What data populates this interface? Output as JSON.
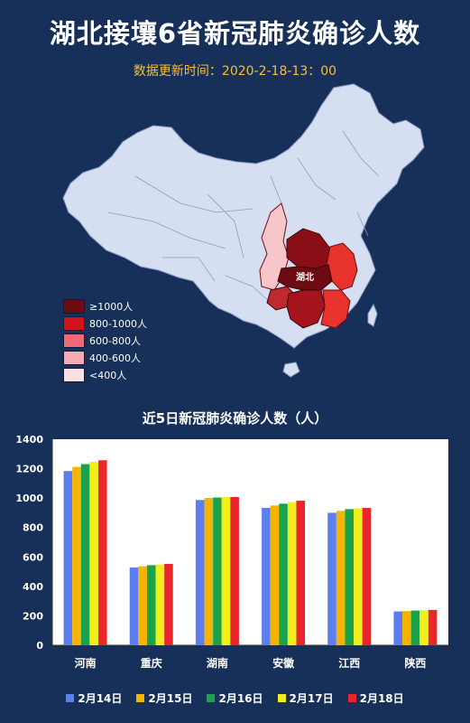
{
  "header": {
    "title": "湖北接壤6省新冠肺炎确诊人数",
    "update_time": "数据更新时间：2020-2-18-13：00"
  },
  "map": {
    "highlight_label": "湖北",
    "province_colors": {
      "湖北": "#6e0a12",
      "河南": "#8a0e18",
      "重庆": "#bf2a31",
      "湖南": "#a3141c",
      "安徽": "#e8322c",
      "江西": "#e8322c",
      "陕西": "#f6c6cb"
    },
    "legend": [
      {
        "label": "≥1000人",
        "color": "#6e0a12"
      },
      {
        "label": "800-1000人",
        "color": "#d0121b"
      },
      {
        "label": "600-800人",
        "color": "#f06b74"
      },
      {
        "label": "400-600人",
        "color": "#f5a9b0"
      },
      {
        "label": "<400人",
        "color": "#fbe1e3"
      }
    ]
  },
  "chart_data": {
    "type": "bar",
    "title": "近5日新冠肺炎确诊人数（人）",
    "categories": [
      "河南",
      "重庆",
      "湖南",
      "安徽",
      "江西",
      "陕西"
    ],
    "series": [
      {
        "name": "2月14日",
        "color": "#5b7ff0",
        "values": [
          1184,
          529,
          987,
          934,
          900,
          230
        ]
      },
      {
        "name": "2月15日",
        "color": "#f5b400",
        "values": [
          1212,
          537,
          1001,
          950,
          913,
          232
        ]
      },
      {
        "name": "2月16日",
        "color": "#1aa34a",
        "values": [
          1231,
          544,
          1004,
          962,
          925,
          236
        ]
      },
      {
        "name": "2月17日",
        "color": "#f2ee1c",
        "values": [
          1246,
          549,
          1006,
          973,
          930,
          238
        ]
      },
      {
        "name": "2月18日",
        "color": "#e8262b",
        "values": [
          1257,
          553,
          1007,
          982,
          933,
          240
        ]
      }
    ],
    "data_labels": [
      "1257",
      "553",
      "1007",
      "982",
      "933",
      "240"
    ],
    "ylim": [
      0,
      1400
    ],
    "yticks": [
      0,
      200,
      400,
      600,
      800,
      1000,
      1200,
      1400
    ],
    "legend_position": "bottom"
  }
}
